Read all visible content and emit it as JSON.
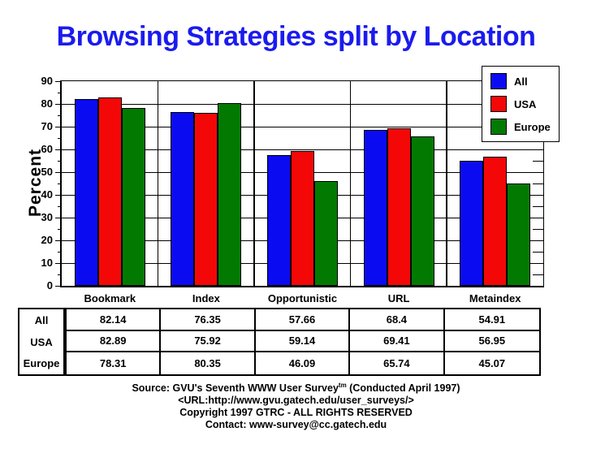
{
  "page": {
    "background": "#ffffff",
    "title": "Browsing Strategies split by Location",
    "title_color": "#1b1bef"
  },
  "chart_data": {
    "type": "bar",
    "title": "Browsing Strategies split by Location",
    "ylabel": "Percent",
    "ylim": [
      0,
      90
    ],
    "ytick_step": 10,
    "yminor_step": 5,
    "grid": true,
    "legend_position": "top-right-overlay",
    "categories": [
      "Bookmark",
      "Index",
      "Opportunistic",
      "URL",
      "Metaindex"
    ],
    "series": [
      {
        "name": "All",
        "color": "#0b0bf2",
        "values": [
          82.14,
          76.35,
          57.66,
          68.4,
          54.91
        ]
      },
      {
        "name": "USA",
        "color": "#f40707",
        "values": [
          82.89,
          75.92,
          59.14,
          69.41,
          56.95
        ]
      },
      {
        "name": "Europe",
        "color": "#027a02",
        "values": [
          78.31,
          80.35,
          46.09,
          65.74,
          45.07
        ]
      }
    ]
  },
  "table": {
    "row_headers": [
      "All",
      "USA",
      "Europe"
    ],
    "rows": [
      [
        "82.14",
        "76.35",
        "57.66",
        "68.4",
        "54.91"
      ],
      [
        "82.89",
        "75.92",
        "59.14",
        "69.41",
        "56.95"
      ],
      [
        "78.31",
        "80.35",
        "46.09",
        "65.74",
        "45.07"
      ]
    ]
  },
  "footer": {
    "source_prefix": "Source: GVU's Seventh WWW User Survey",
    "source_superscript": "tm",
    "source_suffix": " (Conducted April 1997)",
    "url_line": "<URL:http://www.gvu.gatech.edu/user_surveys/>",
    "copyright_line": "Copyright 1997 GTRC - ALL RIGHTS RESERVED",
    "contact_line": "Contact: www-survey@cc.gatech.edu"
  }
}
